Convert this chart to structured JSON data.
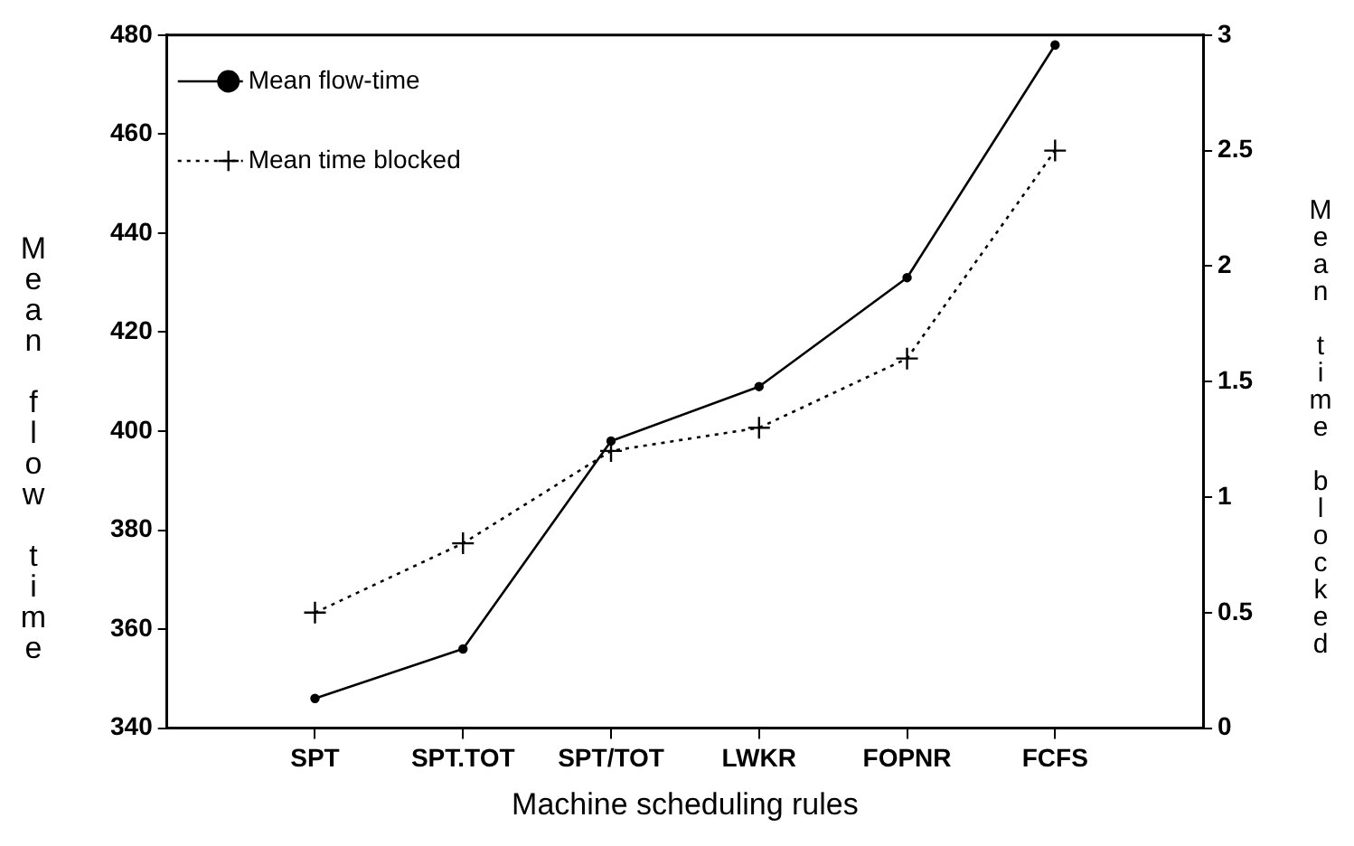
{
  "chart_data": {
    "type": "line",
    "xlabel": "Machine scheduling rules",
    "ylabel": "Mean flow time",
    "y2label": "Mean time blocked",
    "categories": [
      "SPT",
      "SPT.TOT",
      "SPT/TOT",
      "LWKR",
      "FOPNR",
      "FCFS"
    ],
    "series": [
      {
        "name": "Mean flow-time",
        "color": "#000000",
        "values": [
          346,
          356,
          398,
          409,
          431,
          478
        ],
        "marker": "circle",
        "line_style": "solid"
      },
      {
        "name": "Mean time blocked",
        "color": "#000000",
        "values": [
          0.5,
          0.8,
          1.2,
          1.3,
          1.6,
          2.5
        ],
        "axis": "y2",
        "marker": "cross",
        "line_style": "dotted"
      }
    ],
    "ylim": [
      340,
      480
    ],
    "yticks": [
      340,
      360,
      380,
      400,
      420,
      440,
      460,
      480
    ],
    "y2lim": [
      0,
      3
    ],
    "y2ticks": [
      0,
      0.5,
      1,
      1.5,
      2,
      2.5,
      3
    ],
    "grid": false,
    "legend": "top left"
  }
}
